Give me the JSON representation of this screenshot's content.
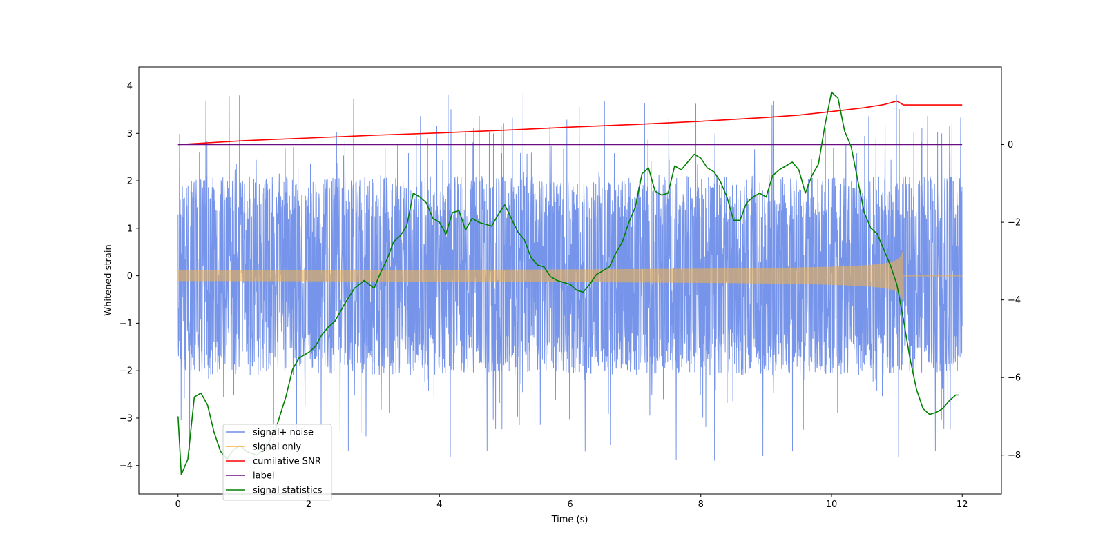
{
  "chart_data": {
    "type": "line",
    "title": "",
    "xlabel": "Time (s)",
    "ylabel": "Whitened strain",
    "xlim": [
      -0.6,
      12.6
    ],
    "ylim": [
      -4.6,
      4.4
    ],
    "y2lim": [
      -9.0,
      2.0
    ],
    "xticks": [
      "0",
      "2",
      "4",
      "6",
      "8",
      "10",
      "12"
    ],
    "yticks": [
      "−4",
      "−3",
      "−2",
      "−1",
      "0",
      "1",
      "2",
      "3",
      "4"
    ],
    "y2ticks": [
      "−8",
      "−6",
      "−4",
      "−2",
      "0"
    ],
    "xtick_values": [
      0,
      2,
      4,
      6,
      8,
      10,
      12
    ],
    "ytick_values": [
      -4,
      -3,
      -2,
      -1,
      0,
      1,
      2,
      3,
      4
    ],
    "y2tick_values": [
      -8,
      -6,
      -4,
      -2,
      0
    ],
    "legend_position": "lower-left",
    "series": [
      {
        "name": "signal+ noise",
        "axis": "left",
        "color": "#6f8ee8",
        "description": "whitened strain noise band, approx ±1.9 with spikes to ±4",
        "t_range": [
          0,
          12
        ],
        "envelope": 1.9
      },
      {
        "name": "signal only",
        "axis": "left",
        "color": "#f5b041",
        "chirp_end_time": 11.1,
        "chirp_peak_amplitude": 0.55,
        "t_range": [
          0,
          12
        ]
      },
      {
        "name": "cumilative SNR",
        "axis": "right",
        "color": "#ff0000",
        "x": [
          0,
          1,
          2,
          3,
          4,
          5,
          6,
          7,
          8,
          9,
          9.5,
          10,
          10.5,
          10.8,
          11.0,
          11.1,
          11.5,
          12
        ],
        "y": [
          0.0,
          0.1,
          0.17,
          0.24,
          0.3,
          0.37,
          0.45,
          0.52,
          0.6,
          0.7,
          0.76,
          0.85,
          0.95,
          1.03,
          1.12,
          1.02,
          1.02,
          1.02
        ]
      },
      {
        "name": "label",
        "axis": "right",
        "color": "#6a0d83",
        "x": [
          0,
          12
        ],
        "y": [
          0,
          0
        ]
      },
      {
        "name": "signal statistics",
        "axis": "right",
        "color": "#008000",
        "x": [
          0,
          0.05,
          0.15,
          0.25,
          0.35,
          0.45,
          0.55,
          0.65,
          0.75,
          0.85,
          0.95,
          1.05,
          1.2,
          1.35,
          1.5,
          1.65,
          1.75,
          1.85,
          2.0,
          2.1,
          2.2,
          2.3,
          2.4,
          2.55,
          2.7,
          2.85,
          3.0,
          3.1,
          3.2,
          3.3,
          3.4,
          3.5,
          3.6,
          3.65,
          3.7,
          3.8,
          3.9,
          4.0,
          4.1,
          4.2,
          4.3,
          4.4,
          4.5,
          4.6,
          4.7,
          4.8,
          4.9,
          5.0,
          5.1,
          5.2,
          5.3,
          5.4,
          5.5,
          5.6,
          5.7,
          5.8,
          5.9,
          6.0,
          6.1,
          6.2,
          6.3,
          6.4,
          6.5,
          6.6,
          6.7,
          6.8,
          6.9,
          7.0,
          7.1,
          7.2,
          7.3,
          7.4,
          7.5,
          7.6,
          7.7,
          7.8,
          7.9,
          8.0,
          8.1,
          8.2,
          8.3,
          8.4,
          8.5,
          8.6,
          8.7,
          8.8,
          8.9,
          9.0,
          9.1,
          9.2,
          9.3,
          9.4,
          9.5,
          9.6,
          9.7,
          9.8,
          9.9,
          10.0,
          10.1,
          10.2,
          10.3,
          10.4,
          10.5,
          10.6,
          10.7,
          10.8,
          10.9,
          11.0,
          11.1,
          11.2,
          11.3,
          11.4,
          11.5,
          11.6,
          11.7,
          11.8,
          11.9,
          11.95
        ],
        "y": [
          -7.0,
          -8.5,
          -8.1,
          -6.5,
          -6.4,
          -6.7,
          -7.4,
          -7.9,
          -8.1,
          -7.85,
          -7.75,
          -7.9,
          -8.0,
          -7.8,
          -7.3,
          -6.5,
          -5.8,
          -5.5,
          -5.35,
          -5.2,
          -4.9,
          -4.7,
          -4.55,
          -4.1,
          -3.7,
          -3.5,
          -3.7,
          -3.3,
          -2.95,
          -2.5,
          -2.35,
          -2.1,
          -1.25,
          -1.3,
          -1.35,
          -1.5,
          -1.9,
          -2.0,
          -2.3,
          -1.75,
          -1.7,
          -2.2,
          -1.9,
          -2.0,
          -2.05,
          -2.1,
          -1.8,
          -1.55,
          -1.9,
          -2.25,
          -2.45,
          -2.9,
          -3.1,
          -3.15,
          -3.4,
          -3.5,
          -3.55,
          -3.6,
          -3.75,
          -3.8,
          -3.6,
          -3.35,
          -3.25,
          -3.15,
          -2.8,
          -2.5,
          -2.0,
          -1.6,
          -0.75,
          -0.6,
          -1.2,
          -1.3,
          -1.25,
          -0.55,
          -0.65,
          -0.45,
          -0.25,
          -0.35,
          -0.6,
          -0.7,
          -0.95,
          -1.35,
          -1.95,
          -1.95,
          -1.5,
          -1.35,
          -1.25,
          -1.35,
          -0.8,
          -0.65,
          -0.55,
          -0.45,
          -0.65,
          -1.25,
          -0.8,
          -0.5,
          0.5,
          1.35,
          1.2,
          0.35,
          -0.05,
          -0.9,
          -1.75,
          -2.15,
          -2.3,
          -2.7,
          -3.1,
          -3.6,
          -4.5,
          -5.5,
          -6.3,
          -6.8,
          -6.95,
          -6.9,
          -6.8,
          -6.6,
          -6.45,
          -6.45
        ]
      }
    ]
  }
}
